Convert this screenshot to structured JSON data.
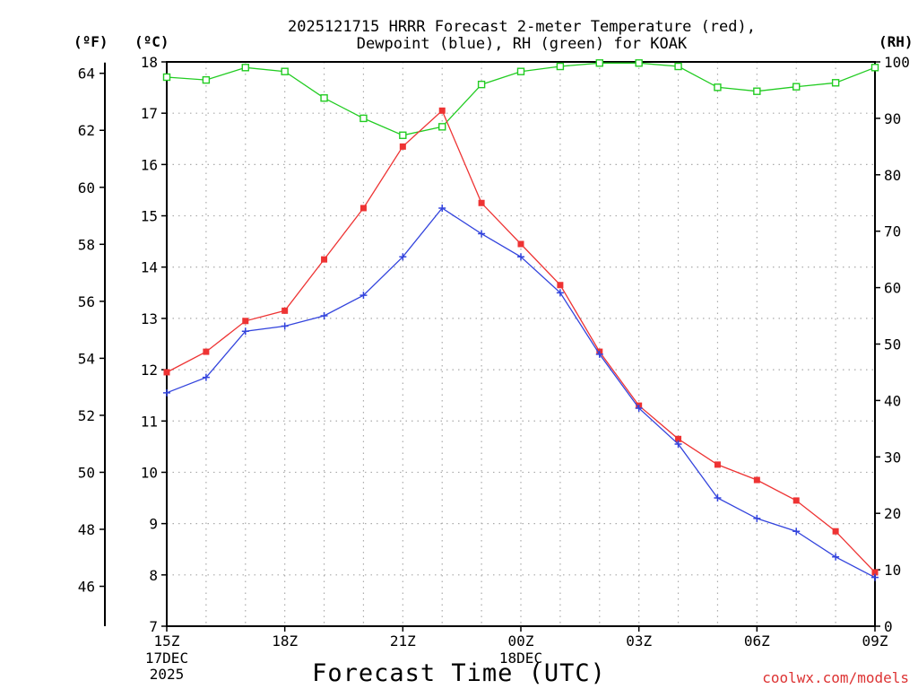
{
  "chart_data": {
    "type": "line",
    "title_line1": "2025121715 HRRR Forecast 2-meter Temperature (red),",
    "title_line2": "Dewpoint (blue), RH (green) for KOAK",
    "xlabel": "Forecast Time (UTC)",
    "units": {
      "fahrenheit": "(ºF)",
      "celsius": "(ºC)",
      "rh": "(RH)"
    },
    "credit": "coolwx.com/models",
    "x_hours": [
      0,
      1,
      2,
      3,
      4,
      5,
      6,
      7,
      8,
      9,
      10,
      11,
      12,
      13,
      14,
      15,
      16,
      17,
      18
    ],
    "x_ticks": [
      {
        "hour": 0,
        "label": "15Z",
        "sub1": "17DEC",
        "sub2": "2025"
      },
      {
        "hour": 3,
        "label": "18Z",
        "sub1": "",
        "sub2": ""
      },
      {
        "hour": 6,
        "label": "21Z",
        "sub1": "",
        "sub2": ""
      },
      {
        "hour": 9,
        "label": "00Z",
        "sub1": "18DEC",
        "sub2": ""
      },
      {
        "hour": 12,
        "label": "03Z",
        "sub1": "",
        "sub2": ""
      },
      {
        "hour": 15,
        "label": "06Z",
        "sub1": "",
        "sub2": ""
      },
      {
        "hour": 18,
        "label": "09Z",
        "sub1": "",
        "sub2": ""
      }
    ],
    "celsius_range": [
      7,
      18
    ],
    "celsius_ticks": [
      "7",
      "8",
      "9",
      "10",
      "11",
      "12",
      "13",
      "14",
      "15",
      "16",
      "17",
      "18"
    ],
    "fahrenheit_ticks": [
      "46",
      "48",
      "50",
      "52",
      "54",
      "56",
      "58",
      "60",
      "62",
      "64"
    ],
    "rh_range": [
      0,
      100
    ],
    "rh_ticks": [
      "0",
      "10",
      "20",
      "30",
      "40",
      "50",
      "60",
      "70",
      "80",
      "90",
      "100"
    ],
    "series": [
      {
        "name": "Temperature",
        "color": "#ee3333",
        "marker": "filled-square",
        "axis": "celsius",
        "values": [
          11.95,
          12.35,
          12.95,
          13.15,
          14.15,
          15.15,
          16.35,
          17.05,
          15.25,
          14.45,
          13.65,
          12.35,
          11.3,
          10.65,
          10.15,
          9.85,
          9.45,
          8.85,
          8.05
        ]
      },
      {
        "name": "Dewpoint",
        "color": "#3344dd",
        "marker": "plus",
        "axis": "celsius",
        "values": [
          11.55,
          11.85,
          12.75,
          12.85,
          13.05,
          13.45,
          14.2,
          15.15,
          14.65,
          14.2,
          13.5,
          12.3,
          11.25,
          10.55,
          9.5,
          9.1,
          8.85,
          8.35,
          7.95
        ]
      },
      {
        "name": "RH",
        "color": "#22cc22",
        "marker": "open-square",
        "axis": "rh",
        "values": [
          97.3,
          96.8,
          99.0,
          98.3,
          93.6,
          90.0,
          87.0,
          88.5,
          96.0,
          98.3,
          99.2,
          99.8,
          99.8,
          99.2,
          95.5,
          94.8,
          95.6,
          96.3,
          99.0
        ]
      }
    ]
  }
}
